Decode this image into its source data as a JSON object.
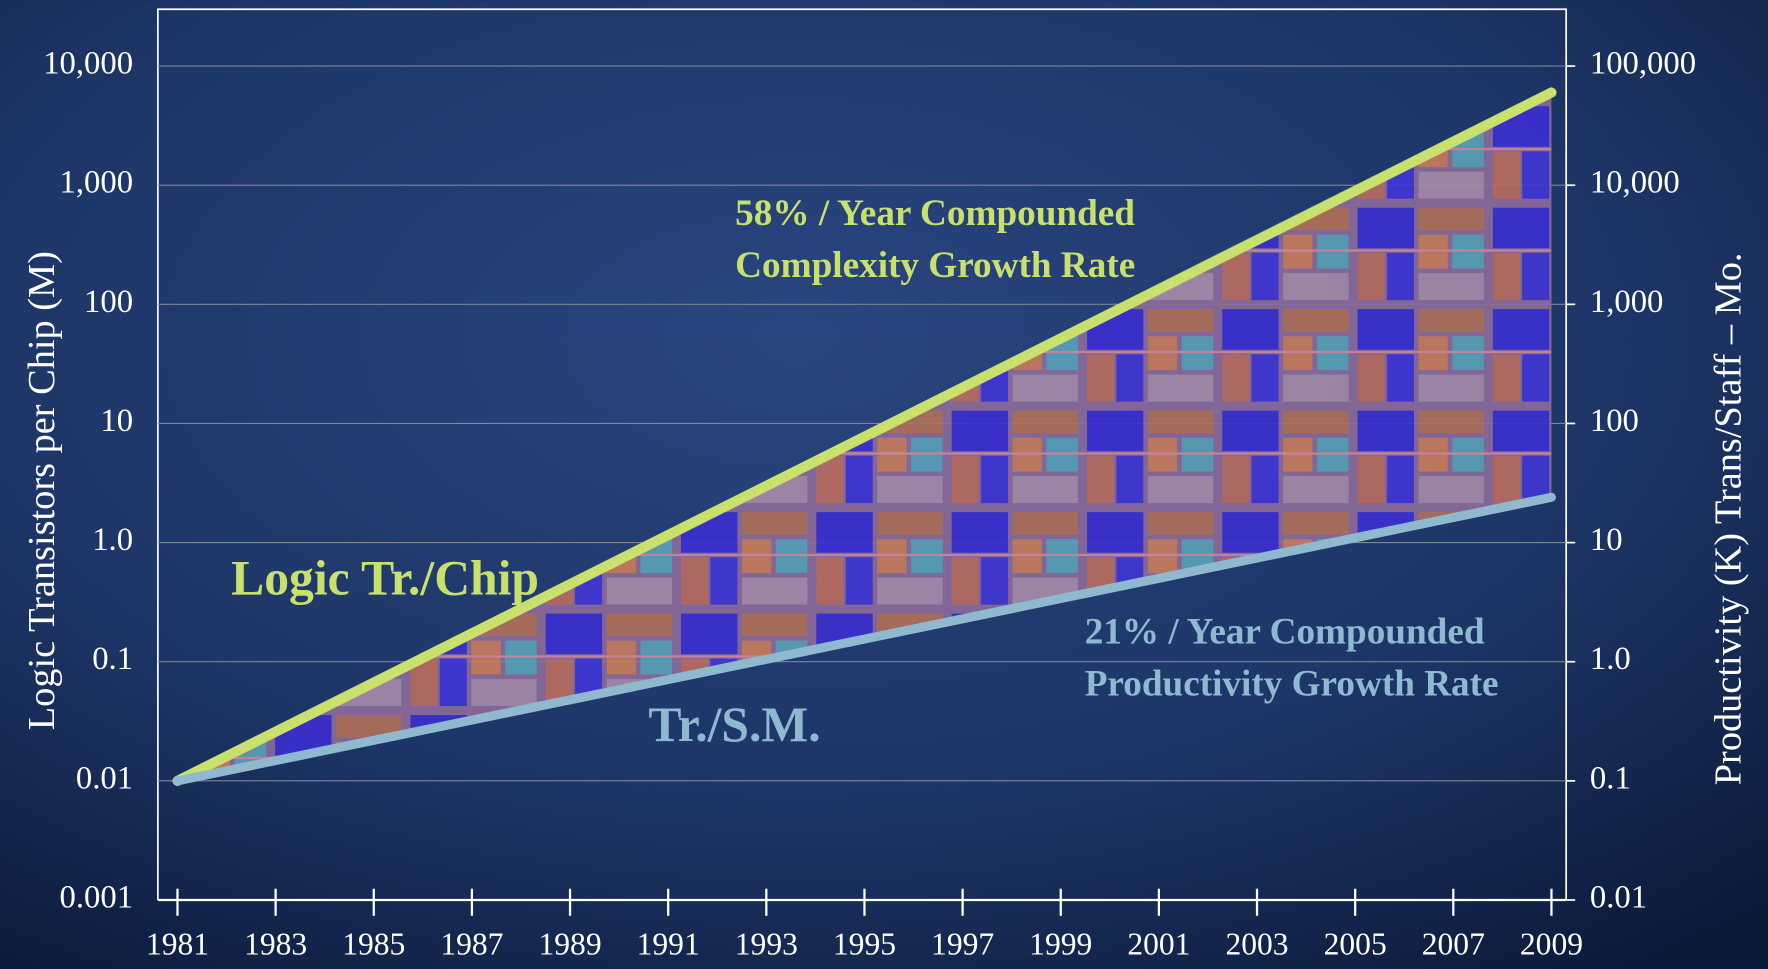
{
  "chart_data": {
    "type": "line",
    "y_label": "Logic Transistors per Chip (M)",
    "y2_label": "Productivity (K) Trans/Staff – Mo.",
    "annotations": [
      "58% / Year Compounded",
      "Complexity Growth Rate",
      "21% / Year Compounded",
      "Productivity Growth Rate"
    ],
    "x": [
      1981,
      2009
    ],
    "series": [
      {
        "name": "Logic Tr./Chip",
        "color": "#c9e06c",
        "values": [
          0.01,
          6000
        ]
      },
      {
        "name": "Tr./S.M.",
        "color": "#8fb9cf",
        "axis": "y2",
        "values": [
          0.1,
          24
        ]
      }
    ],
    "xlim": [
      1980.6,
      2009.3
    ],
    "xticks": [
      1981,
      1983,
      1985,
      1987,
      1989,
      1991,
      1993,
      1995,
      1997,
      1999,
      2001,
      2003,
      2005,
      2007,
      2009
    ],
    "ylim": [
      0.001,
      30000
    ],
    "yticks": [
      0.001,
      0.01,
      0.1,
      {
        "value": 1,
        "label": "1.0"
      },
      10,
      100,
      {
        "value": 1000,
        "label": "1,000"
      },
      {
        "value": 10000,
        "label": "10,000"
      }
    ],
    "y2lim": [
      0.01,
      300000
    ],
    "y2ticks": [
      0.01,
      0.1,
      {
        "value": 1,
        "label": "1.0"
      },
      10,
      100,
      {
        "value": 1000,
        "label": "1,000"
      },
      {
        "value": 10000,
        "label": "10,000"
      },
      {
        "value": 100000,
        "label": "100,000"
      }
    ],
    "log_scale": true,
    "grid": true
  }
}
